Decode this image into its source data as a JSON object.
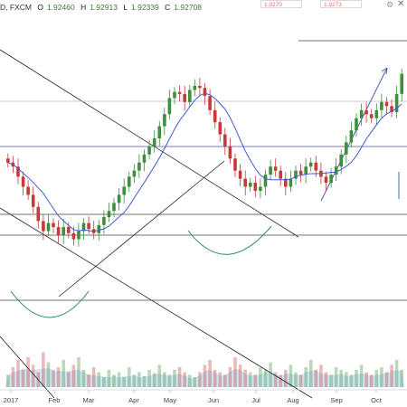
{
  "header": {
    "symbol_suffix": "D, FXCM",
    "open_label": "O",
    "open": "1.92460",
    "high_label": "H",
    "high": "1.92913",
    "low_label": "L",
    "low": "1.92339",
    "close_label": "C",
    "close": "1.92708",
    "bid": "1.9270",
    "ask": "1.9273"
  },
  "chart_data": {
    "type": "candlestick",
    "instrument_interval": "D",
    "source": "FXCM",
    "x_axis_labels": [
      "2017",
      "Feb",
      "Mar",
      "Apr",
      "May",
      "Jun",
      "Jul",
      "Aug",
      "Sep",
      "Oct"
    ],
    "y_axis_labels": [],
    "candles_normalized_close": [
      0.62,
      0.6,
      0.55,
      0.5,
      0.46,
      0.4,
      0.33,
      0.28,
      0.32,
      0.3,
      0.26,
      0.3,
      0.27,
      0.24,
      0.28,
      0.32,
      0.29,
      0.27,
      0.31,
      0.35,
      0.38,
      0.42,
      0.46,
      0.5,
      0.55,
      0.58,
      0.62,
      0.66,
      0.7,
      0.74,
      0.8,
      0.86,
      0.94,
      0.97,
      0.96,
      0.92,
      0.98,
      1.0,
      0.99,
      0.95,
      0.88,
      0.82,
      0.76,
      0.7,
      0.64,
      0.58,
      0.54,
      0.5,
      0.52,
      0.48,
      0.5,
      0.56,
      0.6,
      0.58,
      0.54,
      0.5,
      0.54,
      0.58,
      0.56,
      0.6,
      0.62,
      0.58,
      0.55,
      0.52,
      0.56,
      0.6,
      0.66,
      0.72,
      0.78,
      0.84,
      0.88,
      0.86,
      0.84,
      0.88,
      0.92,
      0.9,
      0.87,
      0.96,
      1.06
    ],
    "volume_normalized": [
      0.25,
      0.4,
      0.55,
      0.35,
      0.6,
      0.45,
      0.3,
      0.7,
      0.5,
      0.35,
      0.4,
      0.55,
      0.3,
      0.45,
      0.6,
      0.35,
      0.25,
      0.4,
      0.3,
      0.2,
      0.35,
      0.25,
      0.3,
      0.2,
      0.4,
      0.25,
      0.3,
      0.22,
      0.35,
      0.28,
      0.45,
      0.3,
      0.25,
      0.35,
      0.4,
      0.3,
      0.25,
      0.2,
      0.3,
      0.45,
      0.55,
      0.35,
      0.3,
      0.25,
      0.4,
      0.6,
      0.45,
      0.35,
      0.3,
      0.25,
      0.4,
      0.35,
      0.5,
      0.3,
      0.25,
      0.35,
      0.45,
      0.3,
      0.25,
      0.4,
      0.55,
      0.35,
      0.45,
      0.3,
      0.25,
      0.4,
      0.35,
      0.3,
      0.25,
      0.35,
      0.45,
      0.3,
      0.25,
      0.35,
      0.4,
      0.3,
      0.45,
      0.55,
      0.35
    ],
    "moving_average": true,
    "drawings": [
      "diagonal trendlines",
      "horizontal support/resistance lines",
      "rounded-bottom arcs",
      "projection arrows"
    ],
    "grid": false,
    "legend": "none"
  },
  "colors": {
    "up_candle": "#3d8f3d",
    "down_candle": "#c63a3a",
    "ma_line": "#3f5bd6",
    "horizontal_blue": "#4d4dcc",
    "trendline": "#222222",
    "arc": "#2e8b57",
    "arrow": "#4a64a8",
    "volume_area": "#a8cfe8"
  }
}
